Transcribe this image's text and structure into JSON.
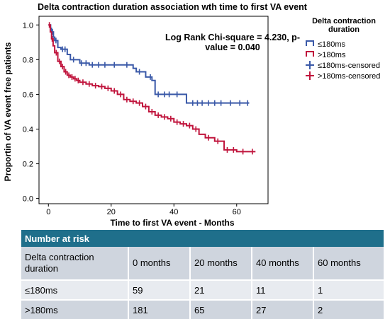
{
  "chart_data": {
    "type": "line",
    "subtype": "kaplan-meier",
    "title": "Delta contraction duration association wth time to first VA event",
    "xlabel": "Time to first VA event - Months",
    "ylabel": "Proportin of VA event free patients",
    "xlim": [
      -3,
      70
    ],
    "ylim": [
      -0.03,
      1.05
    ],
    "xticks": [
      0,
      20,
      40,
      60
    ],
    "yticks": [
      0.0,
      0.2,
      0.4,
      0.6,
      0.8,
      1.0
    ],
    "ytick_labels": [
      "0.0",
      "0.2",
      "0.4",
      "0.6",
      "0.8",
      "1.0"
    ],
    "annotation": [
      "Log Rank Chi-square = 4.230, p-",
      "value = 0.040"
    ],
    "legend_title": [
      "Delta contraction",
      "duration"
    ],
    "legend_position": "right",
    "grid": false,
    "series": [
      {
        "name": "≤180ms",
        "censored_label": "≤180ms-censored",
        "color": "#3a59a8",
        "x": [
          0,
          0.7,
          1,
          1.6,
          2,
          3,
          4,
          6,
          7,
          10,
          13,
          26,
          27,
          28,
          30,
          31,
          33,
          34,
          40,
          44,
          64
        ],
        "y": [
          1.0,
          0.98,
          0.96,
          0.93,
          0.91,
          0.87,
          0.86,
          0.83,
          0.8,
          0.78,
          0.77,
          0.77,
          0.75,
          0.73,
          0.73,
          0.7,
          0.68,
          0.6,
          0.6,
          0.55,
          0.55
        ],
        "censored_x": [
          1.3,
          2.4,
          4.5,
          5.3,
          8,
          10.5,
          12,
          14,
          16,
          18,
          21,
          25,
          29,
          32.5,
          35,
          37,
          38.5,
          41,
          46,
          47.5,
          49,
          51,
          53,
          55,
          58,
          61,
          63.5
        ],
        "censored_y": [
          0.96,
          0.91,
          0.86,
          0.86,
          0.8,
          0.78,
          0.78,
          0.77,
          0.77,
          0.77,
          0.77,
          0.77,
          0.73,
          0.7,
          0.6,
          0.6,
          0.6,
          0.6,
          0.55,
          0.55,
          0.55,
          0.55,
          0.55,
          0.55,
          0.55,
          0.55,
          0.55
        ]
      },
      {
        "name": ">180ms",
        "censored_label": ">180ms-censored",
        "color": "#c0143c",
        "x": [
          0,
          0.6,
          1,
          1.5,
          2,
          3,
          4,
          5,
          6,
          7,
          8,
          9,
          10,
          12,
          14,
          16,
          18,
          20,
          22,
          24,
          26,
          28,
          30,
          32,
          34,
          36,
          38,
          40,
          42,
          44,
          46,
          48,
          50,
          52,
          53,
          55,
          56,
          60,
          66
        ],
        "y": [
          1.0,
          0.96,
          0.92,
          0.88,
          0.84,
          0.79,
          0.76,
          0.73,
          0.71,
          0.7,
          0.69,
          0.68,
          0.67,
          0.66,
          0.65,
          0.645,
          0.635,
          0.62,
          0.6,
          0.57,
          0.56,
          0.55,
          0.53,
          0.5,
          0.48,
          0.47,
          0.46,
          0.44,
          0.43,
          0.42,
          0.4,
          0.37,
          0.35,
          0.35,
          0.33,
          0.33,
          0.28,
          0.27,
          0.27
        ],
        "censored_x": [
          0.3,
          1.2,
          2.5,
          3.5,
          4.5,
          5.5,
          6.5,
          7.5,
          8.5,
          9.5,
          11,
          13,
          15,
          17,
          19,
          21,
          23,
          25,
          27,
          29,
          31,
          33,
          35,
          37,
          39,
          41,
          43,
          45,
          47,
          51,
          54,
          57,
          59,
          62,
          65
        ],
        "censored_y": [
          1.0,
          0.92,
          0.84,
          0.79,
          0.76,
          0.73,
          0.71,
          0.7,
          0.69,
          0.68,
          0.67,
          0.66,
          0.65,
          0.645,
          0.635,
          0.62,
          0.6,
          0.57,
          0.56,
          0.55,
          0.53,
          0.5,
          0.48,
          0.47,
          0.46,
          0.44,
          0.43,
          0.42,
          0.4,
          0.35,
          0.33,
          0.28,
          0.28,
          0.27,
          0.27
        ]
      }
    ]
  },
  "risk_table": {
    "header": "Number at risk",
    "columns": [
      "Delta contraction duration",
      "0 months",
      "20 months",
      "40 months",
      "60 months"
    ],
    "rows": [
      [
        "≤180ms",
        "59",
        "21",
        "11",
        "1"
      ],
      [
        ">180ms",
        "181",
        "65",
        "27",
        "2"
      ]
    ]
  }
}
